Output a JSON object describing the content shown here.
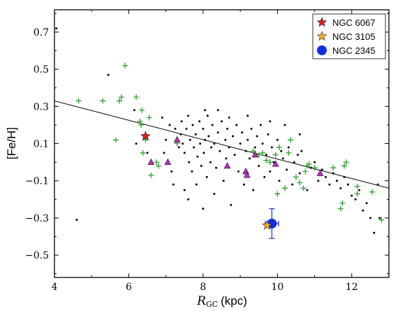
{
  "chart_data": {
    "type": "scatter",
    "title": "",
    "xlabel_main": "R",
    "xlabel_sub": "GC",
    "xlabel_unit": "(kpc)",
    "ylabel": "[Fe/H]",
    "xlim": [
      4,
      13
    ],
    "ylim": [
      -0.62,
      0.82
    ],
    "xticks": [
      4,
      6,
      8,
      10,
      12
    ],
    "xtick_labels": [
      "4",
      "6",
      "8",
      "10",
      "12"
    ],
    "yticks": [
      -0.5,
      -0.3,
      -0.1,
      0.1,
      0.3,
      0.5,
      0.7
    ],
    "ytick_labels": [
      "−0.5",
      "−0.3",
      "−0.1",
      "0.1",
      "0.3",
      "0.5",
      "0.7"
    ],
    "grid": false,
    "legend_position": "top-right",
    "fit_line": {
      "x": [
        4,
        13
      ],
      "y": [
        0.33,
        -0.14
      ]
    },
    "legend": [
      {
        "label": "NGC 6067",
        "marker": "star",
        "color": "#d42020"
      },
      {
        "label": "NGC 3105",
        "marker": "star",
        "color": "#f0a830"
      },
      {
        "label": "NGC 2345",
        "marker": "circle",
        "color": "#1030e0"
      }
    ],
    "highlights": {
      "ngc6067": {
        "x": 6.45,
        "y": 0.14,
        "color": "#d42020"
      },
      "ngc3105": {
        "x": 9.72,
        "y": -0.34,
        "color": "#f0a830"
      },
      "ngc2345": {
        "x": 9.85,
        "y": -0.33,
        "xerr": 0.18,
        "yerr": 0.08,
        "color": "#1030e0"
      }
    },
    "series_crosses": {
      "color": "#2e9e2e",
      "points": [
        [
          4.65,
          0.33
        ],
        [
          5.3,
          0.33
        ],
        [
          5.65,
          0.12
        ],
        [
          5.75,
          0.33
        ],
        [
          5.8,
          0.35
        ],
        [
          5.9,
          0.52
        ],
        [
          6.2,
          0.35
        ],
        [
          6.3,
          0.22
        ],
        [
          6.33,
          0.2
        ],
        [
          6.35,
          0.28
        ],
        [
          6.38,
          0.05
        ],
        [
          6.45,
          0.12
        ],
        [
          6.55,
          0.24
        ],
        [
          6.6,
          -0.07
        ],
        [
          6.75,
          0.0
        ],
        [
          6.8,
          -0.02
        ],
        [
          7.3,
          0.1
        ],
        [
          9.35,
          0.06
        ],
        [
          9.5,
          0.04
        ],
        [
          9.6,
          0.05
        ],
        [
          9.7,
          0.01
        ],
        [
          9.8,
          0.0
        ],
        [
          9.95,
          0.04
        ],
        [
          10.0,
          -0.17
        ],
        [
          10.05,
          0.08
        ],
        [
          10.2,
          -0.14
        ],
        [
          10.3,
          0.05
        ],
        [
          10.35,
          0.12
        ],
        [
          10.5,
          -0.08
        ],
        [
          10.6,
          -0.11
        ],
        [
          10.7,
          -0.14
        ],
        [
          10.75,
          -0.05
        ],
        [
          10.8,
          -0.02
        ],
        [
          10.85,
          -0.01
        ],
        [
          11.0,
          -0.03
        ],
        [
          11.5,
          -0.03
        ],
        [
          11.7,
          -0.25
        ],
        [
          11.75,
          -0.22
        ],
        [
          11.8,
          -0.02
        ],
        [
          11.85,
          0.0
        ],
        [
          12.15,
          -0.17
        ],
        [
          12.15,
          -0.13
        ],
        [
          12.55,
          -0.16
        ],
        [
          12.8,
          -0.31
        ]
      ]
    },
    "series_triangles": {
      "color": "#b030b0",
      "points": [
        [
          6.6,
          0.0
        ],
        [
          7.05,
          0.0
        ],
        [
          7.3,
          0.12
        ],
        [
          8.65,
          -0.02
        ],
        [
          9.15,
          -0.05
        ],
        [
          9.18,
          -0.07
        ],
        [
          9.4,
          0.04
        ],
        [
          9.95,
          -0.01
        ],
        [
          11.15,
          -0.06
        ]
      ]
    },
    "series_dots": {
      "color": "#000000",
      "points": [
        [
          4.05,
          0.72
        ],
        [
          4.6,
          -0.31
        ],
        [
          5.45,
          0.47
        ],
        [
          6.15,
          0.28
        ],
        [
          6.9,
          0.24
        ],
        [
          7.0,
          0.12
        ],
        [
          7.1,
          0.2
        ],
        [
          7.25,
          0.18
        ],
        [
          7.35,
          0.08
        ],
        [
          7.4,
          0.15
        ],
        [
          7.42,
          0.22
        ],
        [
          7.45,
          0.1
        ],
        [
          7.5,
          0.05
        ],
        [
          7.55,
          0.18
        ],
        [
          7.6,
          0.25
        ],
        [
          7.62,
          0.0
        ],
        [
          7.65,
          0.12
        ],
        [
          7.7,
          -0.05
        ],
        [
          7.72,
          0.2
        ],
        [
          7.75,
          0.08
        ],
        [
          7.8,
          0.15
        ],
        [
          7.82,
          -0.12
        ],
        [
          7.85,
          0.03
        ],
        [
          7.9,
          0.22
        ],
        [
          7.92,
          0.1
        ],
        [
          7.95,
          -0.02
        ],
        [
          8.0,
          0.18
        ],
        [
          8.02,
          0.05
        ],
        [
          8.05,
          0.12
        ],
        [
          8.1,
          -0.08
        ],
        [
          8.12,
          0.25
        ],
        [
          8.15,
          0.14
        ],
        [
          8.2,
          0.0
        ],
        [
          8.22,
          0.08
        ],
        [
          8.25,
          0.2
        ],
        [
          8.3,
          0.1
        ],
        [
          8.35,
          -0.03
        ],
        [
          8.4,
          0.16
        ],
        [
          8.45,
          0.06
        ],
        [
          8.5,
          0.22
        ],
        [
          8.55,
          -0.1
        ],
        [
          8.6,
          0.12
        ],
        [
          8.62,
          0.02
        ],
        [
          8.65,
          0.18
        ],
        [
          8.7,
          0.08
        ],
        [
          8.75,
          -0.23
        ],
        [
          8.8,
          0.14
        ],
        [
          8.85,
          0.04
        ],
        [
          8.9,
          0.2
        ],
        [
          8.95,
          -0.05
        ],
        [
          9.0,
          0.1
        ],
        [
          9.05,
          0.16
        ],
        [
          9.1,
          -0.12
        ],
        [
          9.15,
          0.06
        ],
        [
          9.2,
          0.12
        ],
        [
          9.25,
          0.02
        ],
        [
          9.3,
          0.18
        ],
        [
          9.35,
          -0.15
        ],
        [
          9.4,
          0.08
        ],
        [
          9.45,
          0.14
        ],
        [
          9.5,
          -0.02
        ],
        [
          9.55,
          0.2
        ],
        [
          9.6,
          0.1
        ],
        [
          9.65,
          -0.08
        ],
        [
          9.7,
          0.04
        ],
        [
          9.75,
          0.15
        ],
        [
          9.8,
          -0.05
        ],
        [
          9.85,
          0.08
        ],
        [
          9.9,
          0.0
        ],
        [
          10.0,
          0.12
        ],
        [
          10.05,
          -0.1
        ],
        [
          10.1,
          0.06
        ],
        [
          10.15,
          0.02
        ],
        [
          10.25,
          -0.04
        ],
        [
          10.3,
          0.08
        ],
        [
          10.4,
          -0.12
        ],
        [
          10.45,
          0.0
        ],
        [
          10.55,
          0.04
        ],
        [
          10.6,
          -0.06
        ],
        [
          10.65,
          0.06
        ],
        [
          10.8,
          -0.15
        ],
        [
          10.9,
          -0.03
        ],
        [
          11.0,
          0.0
        ],
        [
          11.1,
          -0.1
        ],
        [
          11.2,
          -0.04
        ],
        [
          11.3,
          -0.08
        ],
        [
          11.4,
          -0.12
        ],
        [
          11.5,
          -0.06
        ],
        [
          11.6,
          -0.1
        ],
        [
          11.7,
          -0.14
        ],
        [
          11.8,
          -0.08
        ],
        [
          11.9,
          -0.12
        ],
        [
          12.0,
          -0.18
        ],
        [
          12.1,
          -0.2
        ],
        [
          12.2,
          -0.15
        ],
        [
          12.3,
          -0.26
        ],
        [
          12.4,
          -0.22
        ],
        [
          12.5,
          -0.3
        ],
        [
          12.6,
          -0.38
        ],
        [
          12.7,
          -0.12
        ],
        [
          12.75,
          -0.3
        ],
        [
          7.5,
          -0.15
        ],
        [
          7.6,
          -0.2
        ],
        [
          8.0,
          -0.25
        ],
        [
          8.3,
          -0.17
        ],
        [
          7.2,
          -0.12
        ],
        [
          6.95,
          0.05
        ],
        [
          7.15,
          -0.05
        ],
        [
          8.05,
          0.28
        ],
        [
          8.4,
          0.28
        ],
        [
          8.7,
          0.24
        ],
        [
          9.2,
          0.25
        ],
        [
          9.8,
          0.22
        ],
        [
          10.2,
          0.2
        ],
        [
          10.6,
          0.15
        ],
        [
          6.5,
          0.05
        ],
        [
          6.2,
          0.1
        ]
      ]
    }
  }
}
